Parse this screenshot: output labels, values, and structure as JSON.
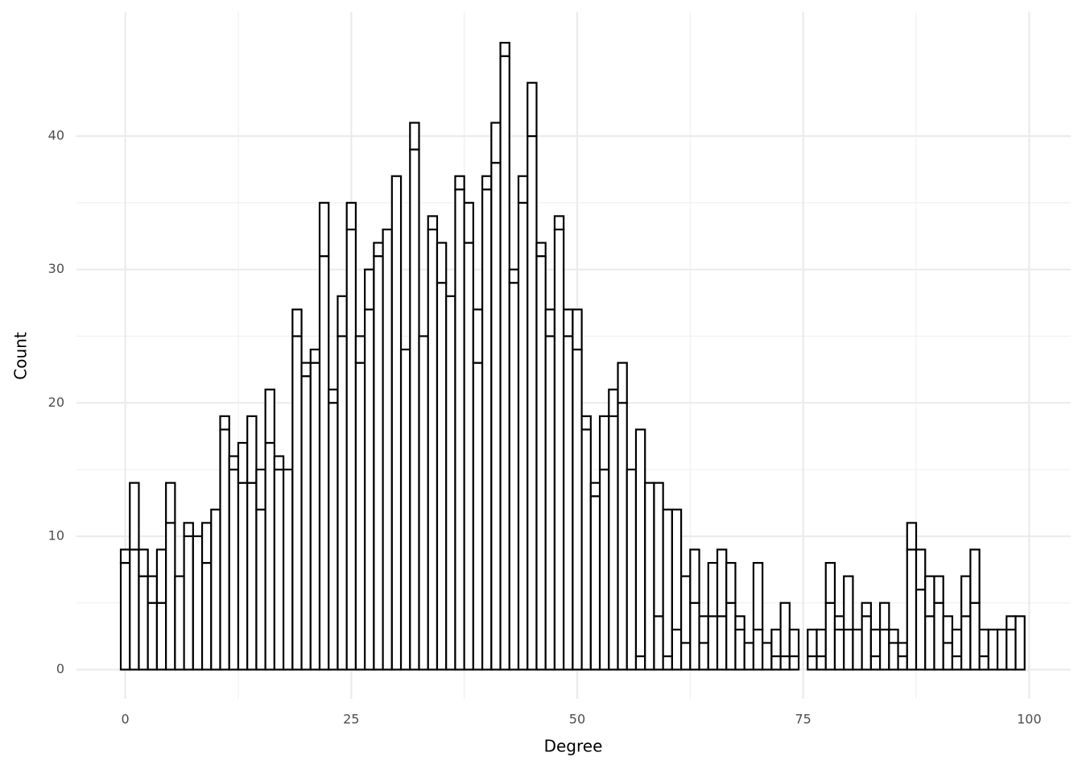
{
  "chart_data": {
    "type": "histogram",
    "x_label": "Degree",
    "y_label": "Count",
    "bins": [
      -0.5,
      0.5,
      1.5,
      2.5,
      3.5,
      4.5,
      5.5,
      6.5,
      7.5,
      8.5,
      9.5,
      10.5,
      11.5,
      12.5,
      13.5,
      14.5,
      15.5,
      16.5,
      17.5,
      18.5,
      19.5,
      20.5,
      21.5,
      22.5,
      23.5,
      24.5,
      25.5,
      26.5,
      27.5,
      28.5,
      29.5,
      30.5,
      31.5,
      32.5,
      33.5,
      34.5,
      35.5,
      36.5,
      37.5,
      38.5,
      39.5,
      40.5,
      41.5,
      42.5,
      43.5,
      44.5,
      45.5,
      46.5,
      47.5,
      48.5,
      49.5,
      50.5,
      51.5,
      52.5,
      53.5,
      54.5,
      55.5,
      56.5,
      57.5,
      58.5,
      59.5,
      60.5,
      61.5,
      62.5,
      63.5,
      64.5,
      65.5,
      66.5,
      67.5,
      68.5,
      69.5,
      70.5,
      71.5,
      72.5,
      73.5,
      74.5,
      75.5,
      76.5,
      77.5,
      78.5,
      79.5,
      80.5,
      81.5,
      82.5,
      83.5,
      84.5,
      85.5,
      86.5,
      87.5,
      88.5,
      89.5,
      90.5,
      91.5,
      92.5,
      93.5,
      94.5,
      95.5,
      96.5,
      97.5,
      98.5,
      99.5
    ],
    "series": [
      {
        "color": "#ffffff",
        "values": [
          8,
          9,
          7,
          5,
          5,
          11,
          7,
          10,
          10,
          8,
          12,
          18,
          15,
          14,
          14,
          12,
          17,
          15,
          15,
          25,
          22,
          23,
          31,
          20,
          25,
          33,
          23,
          27,
          31,
          33,
          37,
          24,
          39,
          25,
          33,
          29,
          28,
          36,
          32,
          23,
          36,
          38,
          46,
          29,
          35,
          40,
          31,
          25,
          33,
          25,
          24,
          18,
          13,
          15,
          19,
          20,
          15,
          1,
          14,
          4,
          1,
          3,
          2,
          5,
          2,
          4,
          4,
          5,
          3,
          2,
          3,
          2,
          1,
          1,
          1,
          0,
          1,
          1,
          5,
          3,
          3,
          3,
          4,
          1,
          3,
          2,
          1,
          9,
          6,
          4,
          5,
          2,
          1,
          4,
          5,
          1,
          3,
          3,
          3,
          4
        ]
      },
      {
        "color": "#ffffff",
        "values": [
          1,
          5,
          2,
          2,
          4,
          3,
          0,
          1,
          0,
          3,
          0,
          1,
          1,
          3,
          5,
          3,
          4,
          1,
          0,
          2,
          1,
          1,
          4,
          1,
          3,
          2,
          2,
          3,
          1,
          0,
          0,
          0,
          2,
          0,
          1,
          3,
          0,
          1,
          3,
          4,
          1,
          3,
          1,
          1,
          2,
          4,
          1,
          2,
          1,
          2,
          3,
          1,
          1,
          4,
          2,
          3,
          0,
          17,
          0,
          10,
          11,
          9,
          5,
          4,
          2,
          4,
          5,
          3,
          1,
          0,
          5,
          0,
          2,
          4,
          2,
          0,
          2,
          2,
          3,
          1,
          4,
          0,
          1,
          2,
          2,
          1,
          1,
          2,
          3,
          3,
          2,
          2,
          2,
          3,
          4,
          2,
          0,
          0,
          1,
          0
        ]
      }
    ],
    "stroke": "#000000",
    "xlim": [
      -5.4,
      104.6
    ],
    "ylim": [
      -2.2,
      49.3
    ],
    "xticks": [
      0,
      25,
      50,
      75,
      100
    ],
    "yticks": [
      0,
      10,
      20,
      30,
      40
    ],
    "grid": true
  }
}
